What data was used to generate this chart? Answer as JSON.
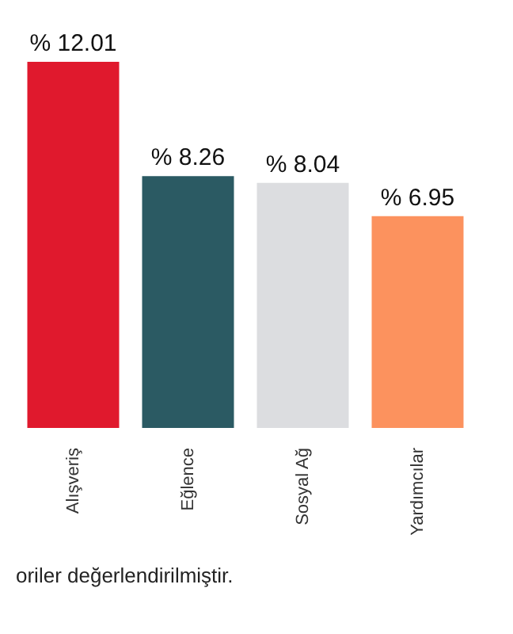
{
  "chart_data": {
    "type": "bar",
    "categories": [
      "Alışveriş",
      "Eğlence",
      "Sosyal Ağ",
      "Yardımcılar"
    ],
    "values": [
      12.01,
      8.26,
      8.04,
      6.95
    ],
    "colors": [
      "#e0192d",
      "#2b5a63",
      "#dcdde0",
      "#fc925e"
    ],
    "value_labels": [
      "% 12.01",
      "% 8.26",
      "% 8.04",
      "% 6.95"
    ],
    "annotations": [
      "oriler değerlendirilmiştir."
    ]
  }
}
